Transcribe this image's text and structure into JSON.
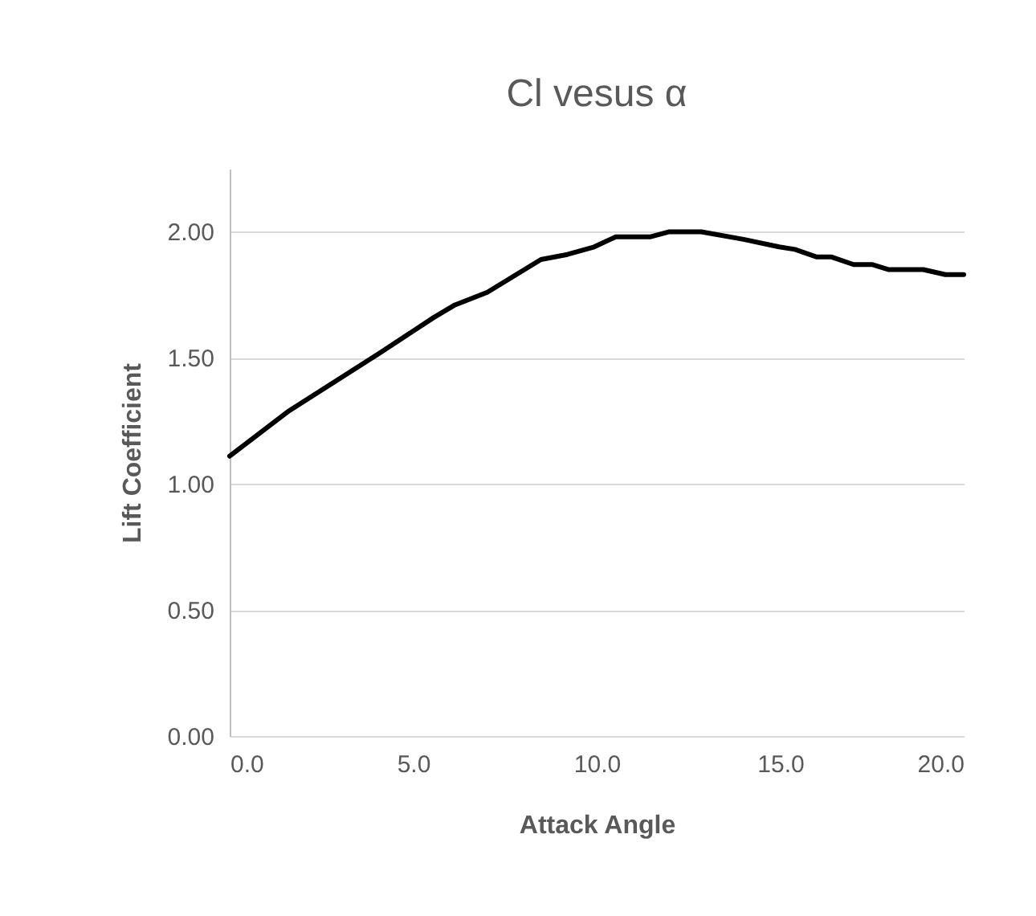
{
  "chart_data": {
    "type": "line",
    "title": "Cl vesus α",
    "xlabel": "Attack Angle",
    "ylabel": "Lift Coefficient",
    "x": [
      0,
      1.62,
      4.1,
      5.56,
      6.14,
      7.02,
      8.48,
      9.2,
      9.93,
      10.52,
      11.47,
      11.98,
      12.85,
      14.0,
      14.97,
      15.4,
      16.0,
      16.4,
      17.0,
      17.5,
      17.96,
      18.9,
      19.5,
      20.0
    ],
    "series": [
      {
        "color": "#000000",
        "values": [
          1.11,
          1.29,
          1.52,
          1.66,
          1.71,
          1.76,
          1.89,
          1.91,
          1.94,
          1.98,
          1.98,
          2.0,
          2.0,
          1.97,
          1.94,
          1.93,
          1.9,
          1.9,
          1.87,
          1.87,
          1.85,
          1.85,
          1.83,
          1.83
        ]
      }
    ],
    "xlim": [
      0,
      20
    ],
    "xticks": [
      {
        "value": 0,
        "label": "0.0"
      },
      {
        "value": 5,
        "label": "5.0"
      },
      {
        "value": 10,
        "label": "10.0"
      },
      {
        "value": 15,
        "label": "15.0"
      },
      {
        "value": 20,
        "label": "20.0"
      }
    ],
    "ylim": [
      0,
      2.25
    ],
    "yticks": [
      {
        "value": 0,
        "label": "0.00"
      },
      {
        "value": 0.5,
        "label": "0.50"
      },
      {
        "value": 1,
        "label": "1.00"
      },
      {
        "value": 1.5,
        "label": "1.50"
      },
      {
        "value": 2,
        "label": "2.00"
      }
    ],
    "grid": "y",
    "marker": "none",
    "line_style": "solid"
  }
}
